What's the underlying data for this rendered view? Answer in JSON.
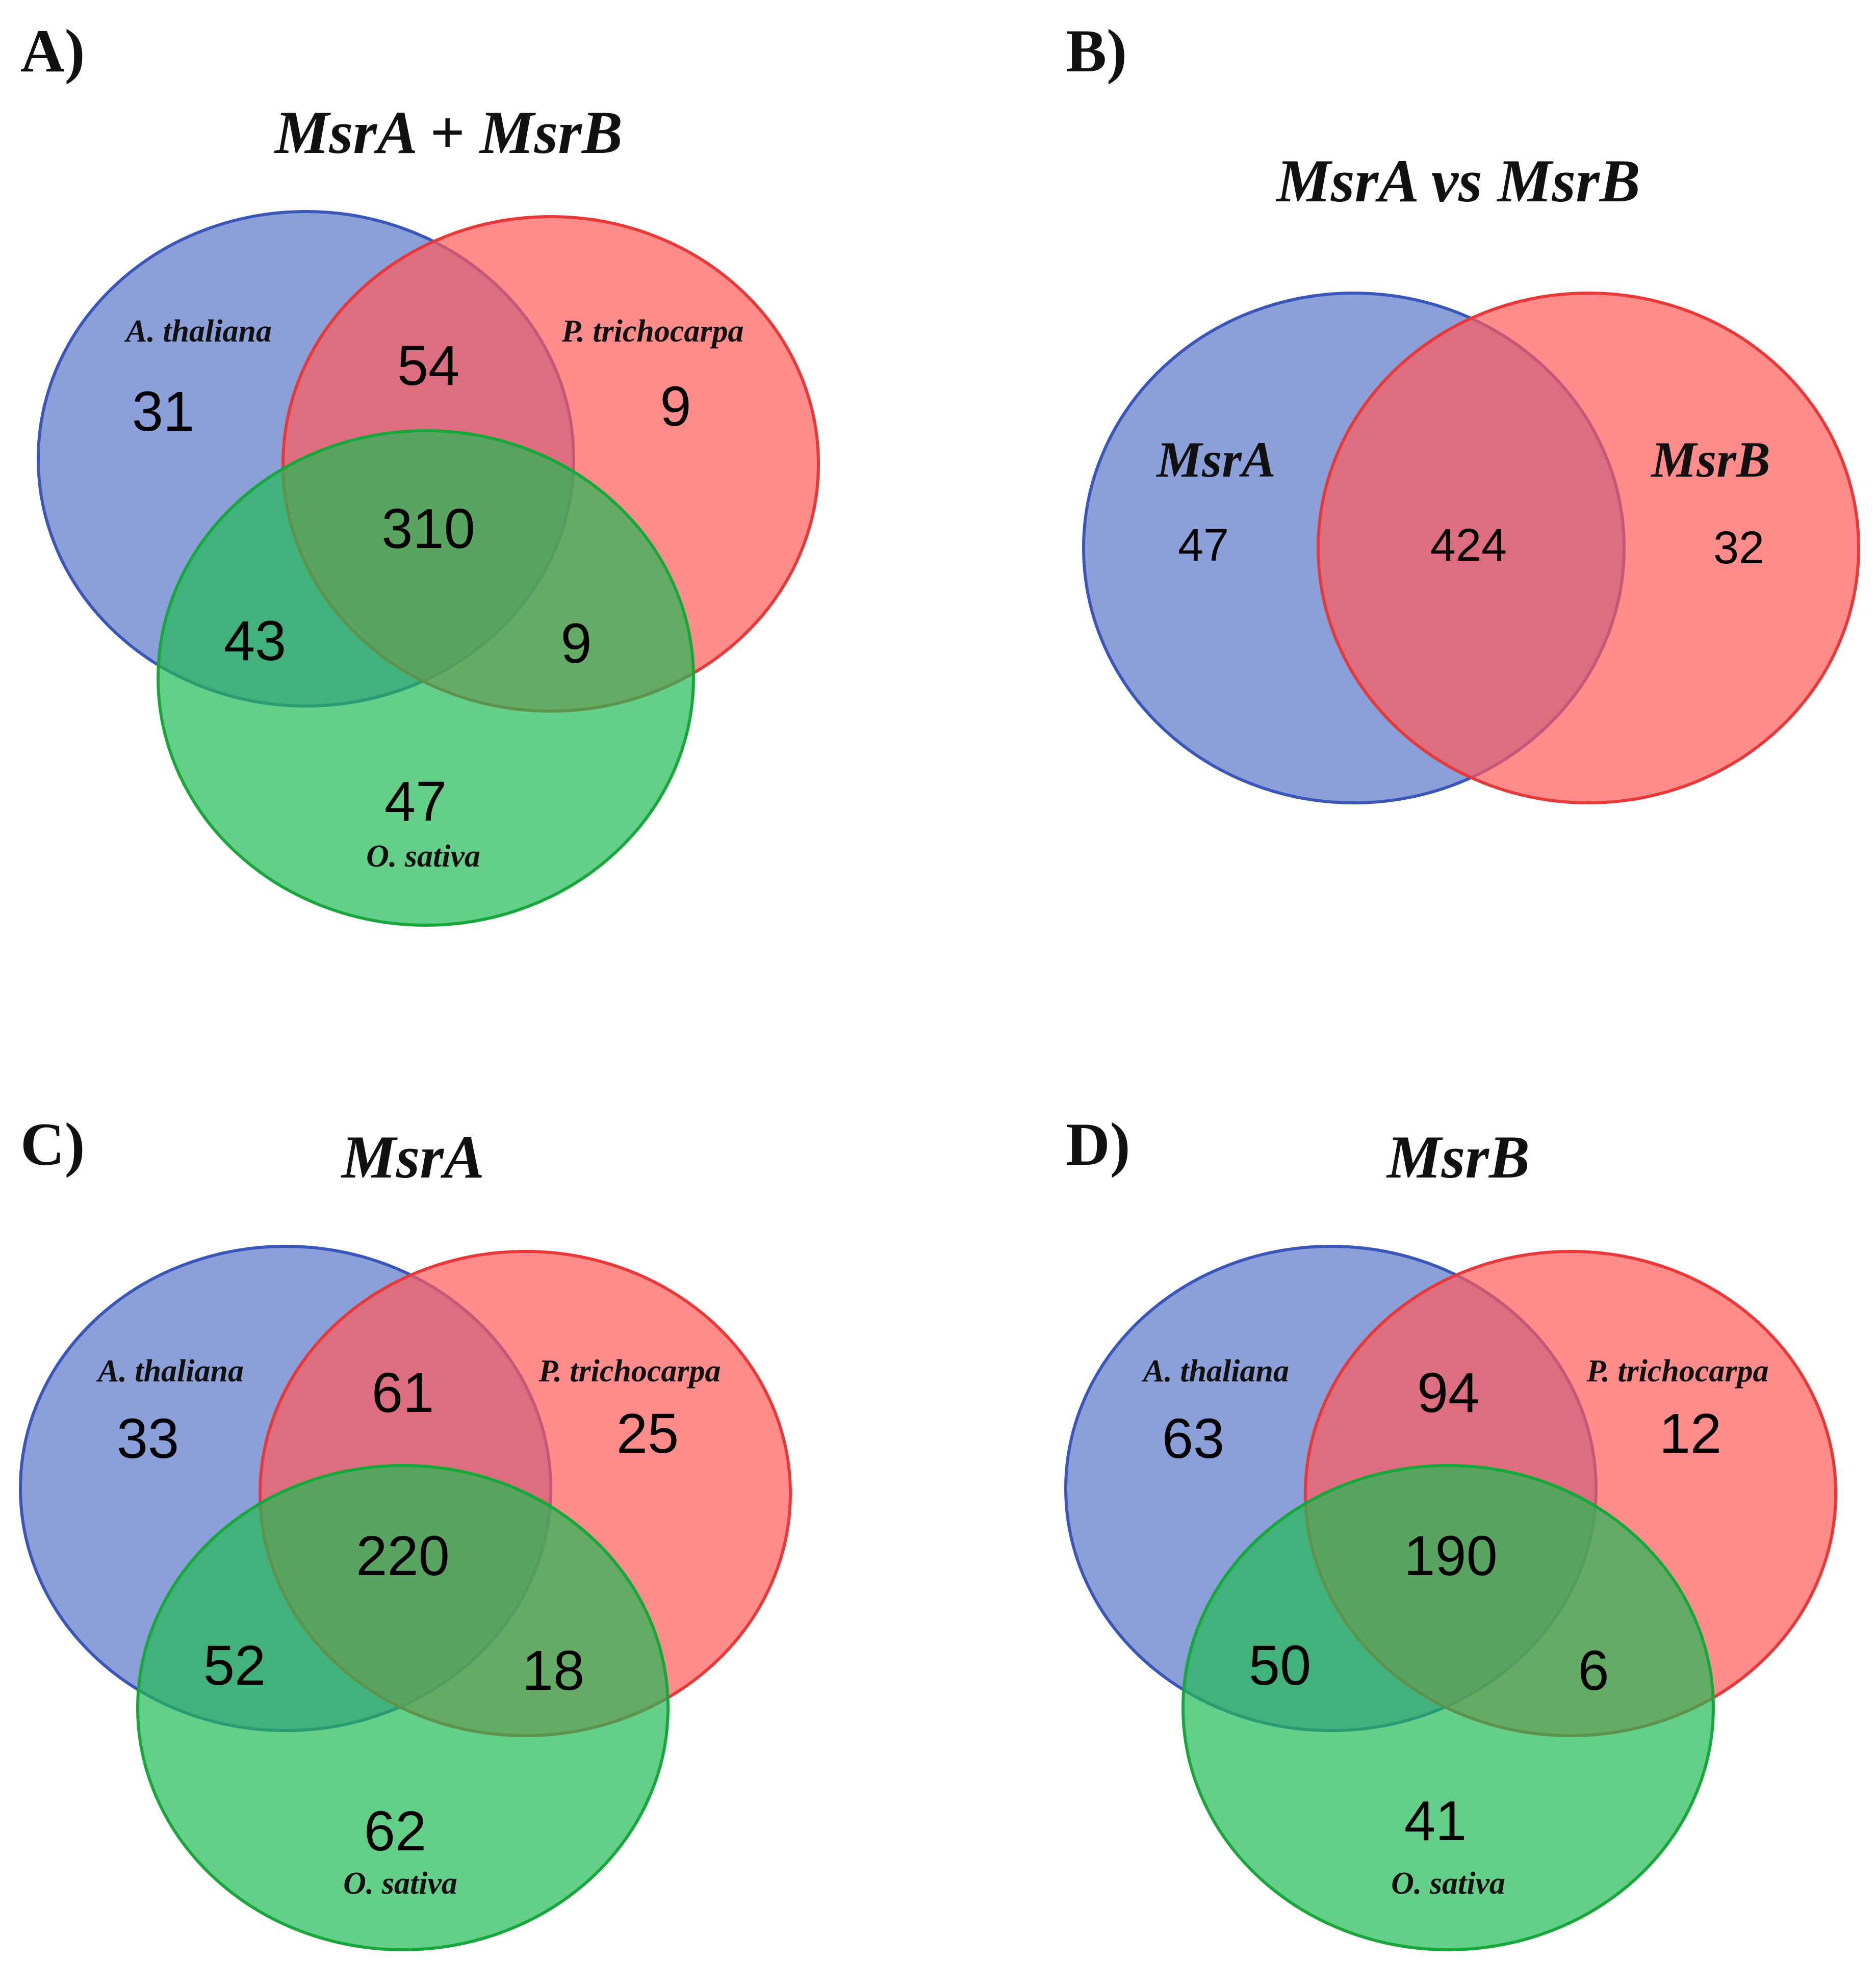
{
  "colors": {
    "blue_fill": "#5a76c8",
    "blue_stroke": "#3a56b8",
    "red_fill": "#ff5a5a",
    "red_stroke": "#e83838",
    "green_fill": "#22bb55",
    "green_stroke": "#16a83a"
  },
  "panels": {
    "a": {
      "label": "A)",
      "title": "MsrA + MsrB",
      "set_labels": {
        "blue": "A. thaliana",
        "red": "P. trichocarpa",
        "green": "O. sativa"
      },
      "counts": {
        "blue_only": "31",
        "blue_red": "54",
        "red_only": "9",
        "all_three": "310",
        "blue_green": "43",
        "red_green": "9",
        "green_only": "47"
      }
    },
    "b": {
      "label": "B)",
      "title": "MsrA vs MsrB",
      "set_labels": {
        "blue": "MsrA",
        "red": "MsrB"
      },
      "counts": {
        "blue_only": "47",
        "both": "424",
        "red_only": "32"
      }
    },
    "c": {
      "label": "C)",
      "title": "MsrA",
      "set_labels": {
        "blue": "A. thaliana",
        "red": "P. trichocarpa",
        "green": "O. sativa"
      },
      "counts": {
        "blue_only": "33",
        "blue_red": "61",
        "red_only": "25",
        "all_three": "220",
        "blue_green": "52",
        "red_green": "18",
        "green_only": "62"
      }
    },
    "d": {
      "label": "D)",
      "title": "MsrB",
      "set_labels": {
        "blue": "A. thaliana",
        "red": "P. trichocarpa",
        "green": "O. sativa"
      },
      "counts": {
        "blue_only": "63",
        "blue_red": "94",
        "red_only": "12",
        "all_three": "190",
        "blue_green": "50",
        "red_green": "6",
        "green_only": "41"
      }
    }
  }
}
